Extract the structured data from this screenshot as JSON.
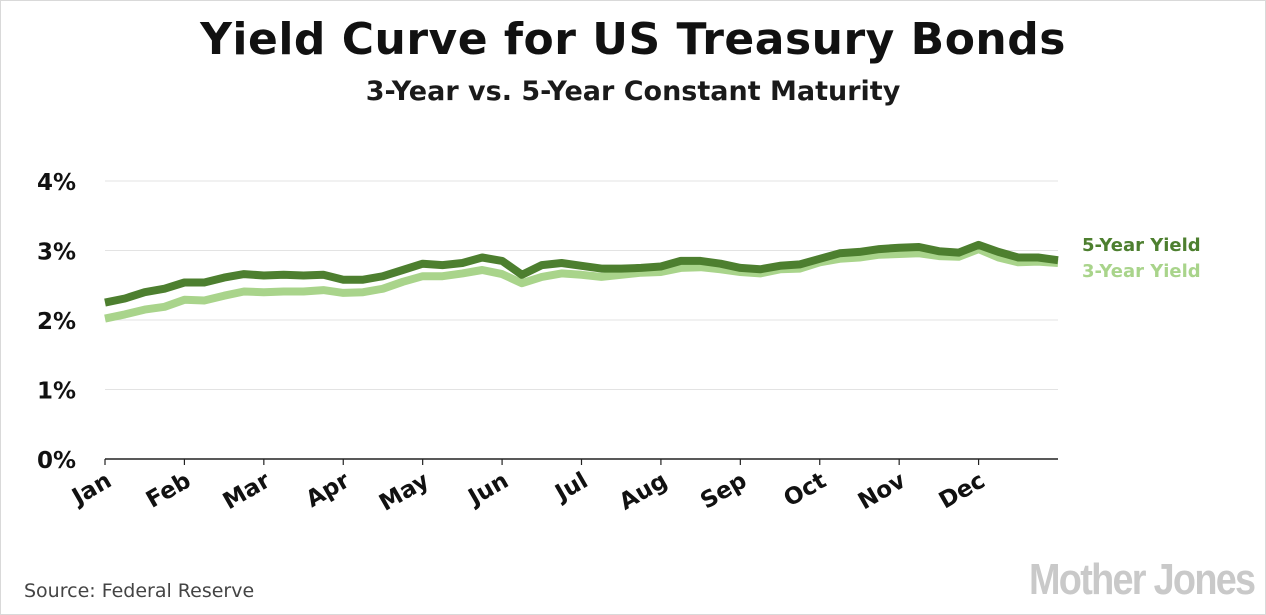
{
  "chart_data": {
    "type": "line",
    "title": "Yield Curve for US Treasury Bonds",
    "subtitle": "3-Year vs. 5-Year Constant Maturity",
    "ylim": [
      0,
      4
    ],
    "yticks": [
      0,
      1,
      2,
      3,
      4
    ],
    "ytick_labels": [
      "0%",
      "1%",
      "2%",
      "3%",
      "4%"
    ],
    "grid": true,
    "legend_placement": "right",
    "x_ticks": [
      "Jan",
      "Feb",
      "Mar",
      "Apr",
      "May",
      "Jun",
      "Jul",
      "Aug",
      "Sep",
      "Oct",
      "Nov",
      "Dec"
    ],
    "points_per_month": 4,
    "series": [
      {
        "name": "5-Year Yield",
        "color": "#4d7f2f",
        "values": [
          2.25,
          2.31,
          2.4,
          2.45,
          2.54,
          2.54,
          2.61,
          2.66,
          2.64,
          2.65,
          2.64,
          2.65,
          2.58,
          2.58,
          2.63,
          2.72,
          2.81,
          2.79,
          2.82,
          2.9,
          2.85,
          2.65,
          2.79,
          2.82,
          2.78,
          2.74,
          2.74,
          2.75,
          2.77,
          2.85,
          2.85,
          2.81,
          2.75,
          2.73,
          2.78,
          2.8,
          2.88,
          2.96,
          2.98,
          3.02,
          3.04,
          3.05,
          2.99,
          2.97,
          3.08,
          2.98,
          2.9,
          2.9,
          2.86
        ]
      },
      {
        "name": "3-Year Yield",
        "color": "#a9d48b",
        "values": [
          2.02,
          2.08,
          2.15,
          2.19,
          2.29,
          2.28,
          2.35,
          2.41,
          2.4,
          2.41,
          2.41,
          2.43,
          2.39,
          2.4,
          2.45,
          2.55,
          2.63,
          2.63,
          2.67,
          2.72,
          2.66,
          2.53,
          2.62,
          2.67,
          2.65,
          2.62,
          2.65,
          2.68,
          2.69,
          2.75,
          2.76,
          2.73,
          2.69,
          2.67,
          2.73,
          2.74,
          2.83,
          2.88,
          2.9,
          2.94,
          2.95,
          2.96,
          2.92,
          2.91,
          3.02,
          2.9,
          2.83,
          2.84,
          2.82
        ]
      }
    ]
  },
  "source": "Source: Federal Reserve",
  "logo": "Mother Jones"
}
